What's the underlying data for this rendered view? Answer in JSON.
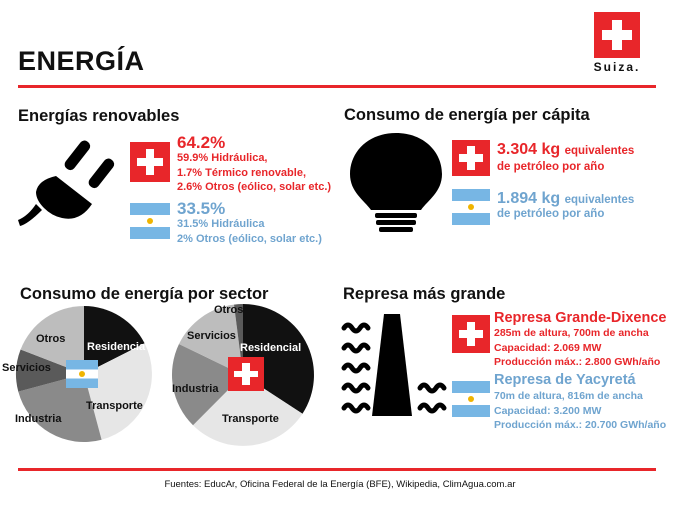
{
  "title": "ENERGÍA",
  "logo_label": "Suiza.",
  "renewables": {
    "heading": "Energías renovables",
    "swiss_pct": "64.2%",
    "swiss_lines": [
      "59.9% Hidráulica,",
      "1.7% Térmico renovable,",
      "2.6% Otros (eólico, solar etc.)"
    ],
    "arg_pct": "33.5%",
    "arg_lines": [
      "31.5% Hidráulica",
      "2% Otros (eólico, solar etc.)"
    ]
  },
  "per_capita": {
    "heading": "Consumo de energía per cápita",
    "swiss_value": "3.304 kg",
    "swiss_unit_1": "equivalentes",
    "swiss_unit_2": "de petróleo por año",
    "arg_value": "1.894 kg",
    "arg_unit_1": "equivalentes",
    "arg_unit_2": "de petróleo por año"
  },
  "sector": {
    "heading": "Consumo de energía por sector",
    "arg_labels": {
      "otros": "Otros",
      "residencia": "Residencia",
      "servicios": "Servicios",
      "transporte": "Transporte",
      "industria": "Industria"
    },
    "swiss_labels": {
      "otros": "Otros",
      "servicios": "Servicios",
      "residencial": "Residencial",
      "industria": "Industria",
      "transporte": "Transporte"
    }
  },
  "dam": {
    "heading": "Represa más grande",
    "swiss_name": "Represa Grande-Dixence",
    "swiss_lines": [
      "285m de altura, 700m de ancha",
      "Capacidad: 2.069 MW",
      "Producción máx.: 2.800 GWh/año"
    ],
    "arg_name": "Represa de Yacyretá",
    "arg_lines": [
      "70m de altura, 816m de ancha",
      "Capacidad: 3.200 MW",
      "Producción máx.: 20.700 GWh/año"
    ]
  },
  "sources": "Fuentes: EducAr, Oficina Federal de la Energía (BFE), Wikipedia, ClimAgua.com.ar",
  "colors": {
    "swiss_red": "#e8262a",
    "arg_blue": "#6fa4cf",
    "arg_sky": "#77b6e4",
    "arg_sun": "#f0b400"
  }
}
